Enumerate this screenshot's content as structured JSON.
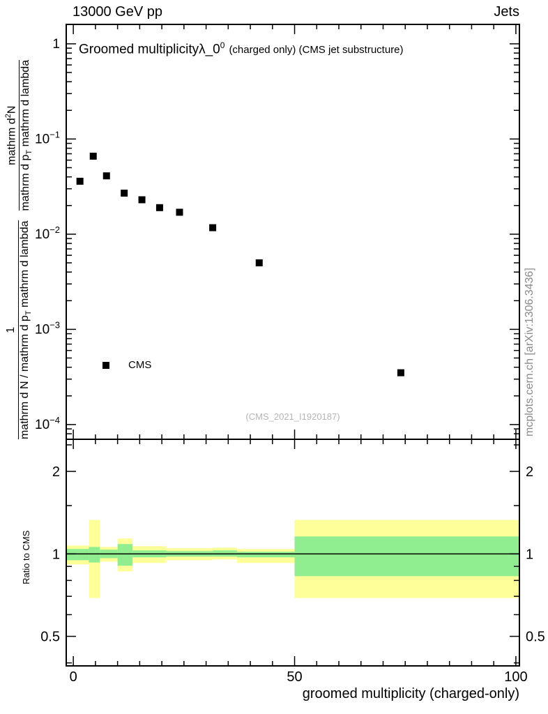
{
  "header": {
    "left": "13000 GeV pp",
    "right": "Jets"
  },
  "main_panel": {
    "title": {
      "main": "Groomed multiplicity",
      "lambda": "λ_0",
      "exponent": "0",
      "suffix": "(charged only) (CMS jet substructure)"
    },
    "ylabel": {
      "prefix_numerator": "1",
      "prefix_denominator": "mathrm d N / mathrm d p",
      "prefix_denominator_sub": "T",
      "prefix_denominator_tail": " mathrm d lambda",
      "numerator": "mathrm d",
      "numerator_sup": "2",
      "numerator_tail": "N",
      "denominator": "mathrm d p",
      "denominator_sub": "T",
      "denominator_tail": " mathrm d lambda"
    },
    "legend": {
      "label": "CMS",
      "marker": "filled-black-square"
    },
    "watermark": "(CMS_2021_I1920187)"
  },
  "ratio_panel": {
    "ylabel": "Ratio to CMS"
  },
  "x_axis_title": "groomed multiplicity (charged-only)",
  "side_credit": "mcplots.cern.ch [arXiv:1306.3436]",
  "colors": {
    "outer_band": "#ffff99",
    "inner_band": "#90ee90",
    "marker": "#000000",
    "watermark_text": "#b4b4b4",
    "credit_text": "#8a8a8a"
  },
  "chart_data": [
    {
      "type": "scatter",
      "panel": "main",
      "title": "Groomed multiplicity λ_0^0 (charged only) (CMS jet substructure)",
      "xlabel": "groomed multiplicity (charged-only)",
      "ylabel": "1/(dN/dp_T) d^2N/(dp_T dlambda)",
      "yscale": "log",
      "xlim": [
        -1.6,
        100.8
      ],
      "ylim": [
        7e-05,
        1.6
      ],
      "x_ticks": [
        {
          "value": 0,
          "label": "0"
        },
        {
          "value": 50,
          "label": "50"
        },
        {
          "value": 100,
          "label": "100"
        }
      ],
      "x_minor_step": 5,
      "y_ticks": [
        {
          "value": 1,
          "base": "1",
          "exp": ""
        },
        {
          "value": 0.1,
          "base": "10",
          "exp": "−1"
        },
        {
          "value": 0.01,
          "base": "10",
          "exp": "−2"
        },
        {
          "value": 0.001,
          "base": "10",
          "exp": "−3"
        },
        {
          "value": 0.0001,
          "base": "10",
          "exp": "−4"
        }
      ],
      "series": [
        {
          "name": "CMS",
          "marker": "square",
          "color": "#000000",
          "points": [
            [
              1.5,
              0.036
            ],
            [
              4.5,
              0.066
            ],
            [
              7.5,
              0.041
            ],
            [
              11.5,
              0.027
            ],
            [
              15.5,
              0.023
            ],
            [
              19.5,
              0.019
            ],
            [
              24,
              0.017
            ],
            [
              31.5,
              0.0117
            ],
            [
              42,
              0.005
            ],
            [
              74,
              0.00035
            ]
          ]
        }
      ]
    },
    {
      "type": "band",
      "panel": "ratio",
      "ylabel": "Ratio to CMS",
      "yscale": "log",
      "ylim": [
        0.39,
        2.62
      ],
      "center_line": 1.0,
      "y_ticks": [
        {
          "value": 2,
          "label": "2"
        },
        {
          "value": 1,
          "label": "1"
        },
        {
          "value": 0.5,
          "label": "0.5"
        }
      ],
      "y_minor_ticks": [
        0.4,
        0.6,
        0.7,
        0.8,
        0.9,
        1.5,
        2.5
      ],
      "bands": [
        {
          "x": [
            -1.6,
            3.5
          ],
          "outer": [
            0.915,
            1.073
          ],
          "inner": [
            0.948,
            1.042
          ]
        },
        {
          "x": [
            3.5,
            6
          ],
          "outer": [
            0.69,
            1.33
          ],
          "inner": [
            0.93,
            1.06
          ]
        },
        {
          "x": [
            6,
            10
          ],
          "outer": [
            0.937,
            1.06
          ],
          "inner": [
            0.965,
            1.036
          ]
        },
        {
          "x": [
            10,
            13.4
          ],
          "outer": [
            0.863,
            1.138
          ],
          "inner": [
            0.905,
            1.086
          ]
        },
        {
          "x": [
            13.4,
            21
          ],
          "outer": [
            0.926,
            1.067
          ],
          "inner": [
            0.971,
            1.03
          ]
        },
        {
          "x": [
            21,
            31.5
          ],
          "outer": [
            0.948,
            1.048
          ],
          "inner": [
            0.977,
            1.024
          ]
        },
        {
          "x": [
            31.5,
            37
          ],
          "outer": [
            0.954,
            1.054
          ],
          "inner": [
            0.977,
            1.03
          ]
        },
        {
          "x": [
            37,
            50
          ],
          "outer": [
            0.926,
            1.042
          ],
          "inner": [
            0.971,
            1.018
          ]
        },
        {
          "x": [
            50,
            100.8
          ],
          "outer": [
            0.69,
            1.33
          ],
          "inner": [
            0.829,
            1.158
          ]
        }
      ]
    }
  ]
}
